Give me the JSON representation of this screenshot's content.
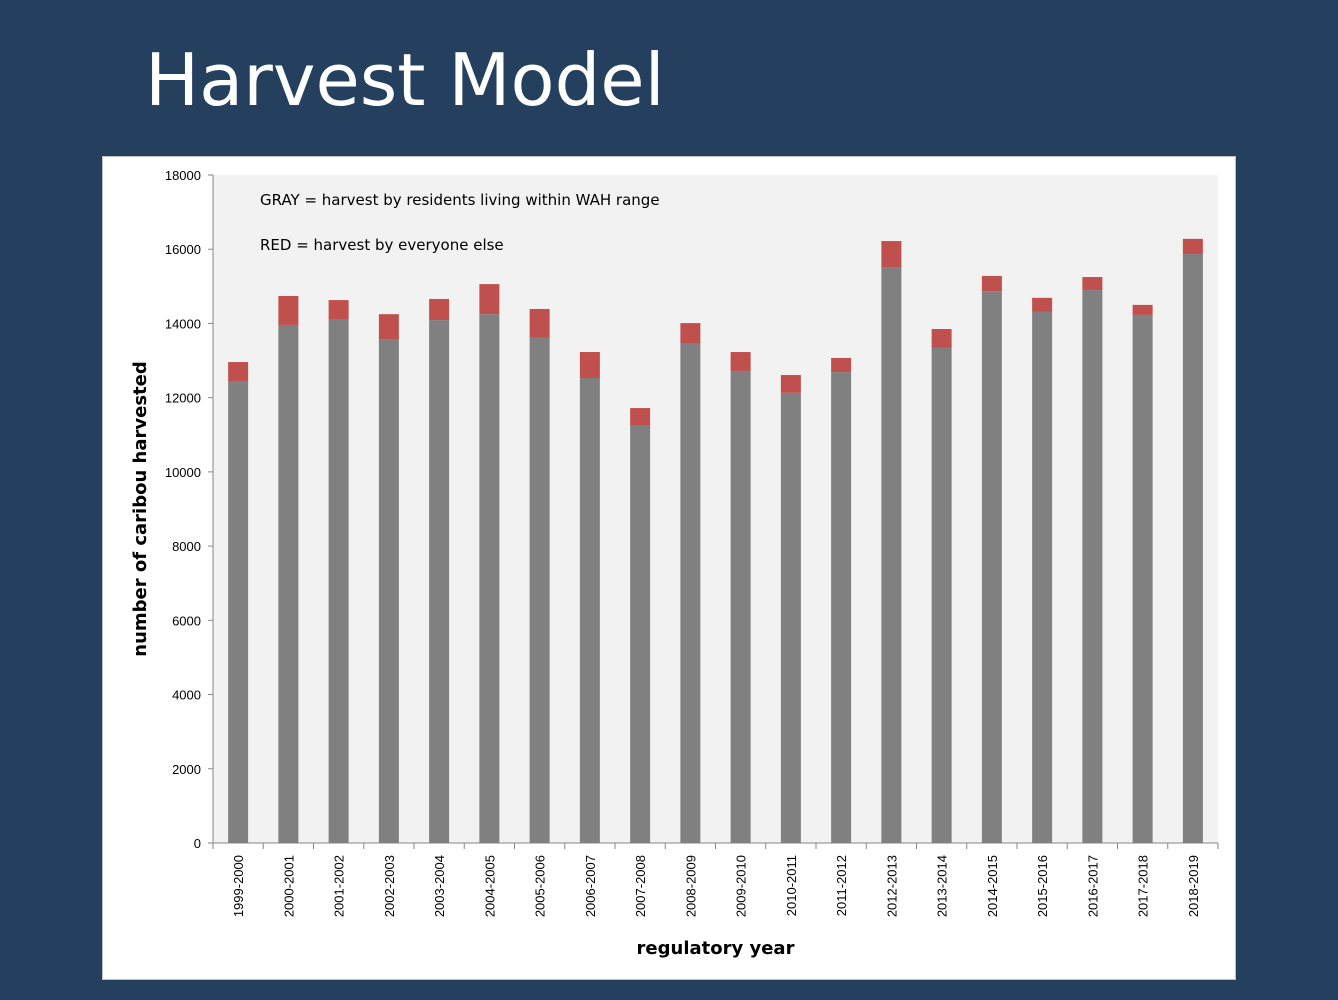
{
  "title": "Harvest Model",
  "chart_data": {
    "type": "bar",
    "stacked": true,
    "xlabel": "regulatory year",
    "ylabel": "number of caribou harvested",
    "ylim": [
      0,
      18000
    ],
    "yticks": [
      0,
      2000,
      4000,
      6000,
      8000,
      10000,
      12000,
      14000,
      16000,
      18000
    ],
    "annotations": [
      "GRAY = harvest by residents living within WAH range",
      "RED = harvest by everyone else"
    ],
    "categories": [
      "1999-2000",
      "2000-2001",
      "2001-2002",
      "2002-2003",
      "2003-2004",
      "2004-2005",
      "2005-2006",
      "2006-2007",
      "2007-2008",
      "2008-2009",
      "2009-2010",
      "2010-2011",
      "2011-2012",
      "2012-2013",
      "2013-2014",
      "2014-2015",
      "2015-2016",
      "2016-2017",
      "2017-2018",
      "2018-2019"
    ],
    "series": [
      {
        "name": "GRAY",
        "color": "#808080",
        "values": [
          12450,
          13960,
          14120,
          13580,
          14090,
          14250,
          13610,
          12530,
          11240,
          13450,
          12720,
          12130,
          12690,
          15520,
          13340,
          14870,
          14310,
          14900,
          14230,
          15870
        ]
      },
      {
        "name": "RED",
        "color": "#c0504d",
        "values": [
          510,
          780,
          510,
          670,
          570,
          810,
          780,
          700,
          480,
          560,
          510,
          480,
          380,
          700,
          510,
          410,
          380,
          350,
          270,
          410
        ]
      }
    ]
  }
}
